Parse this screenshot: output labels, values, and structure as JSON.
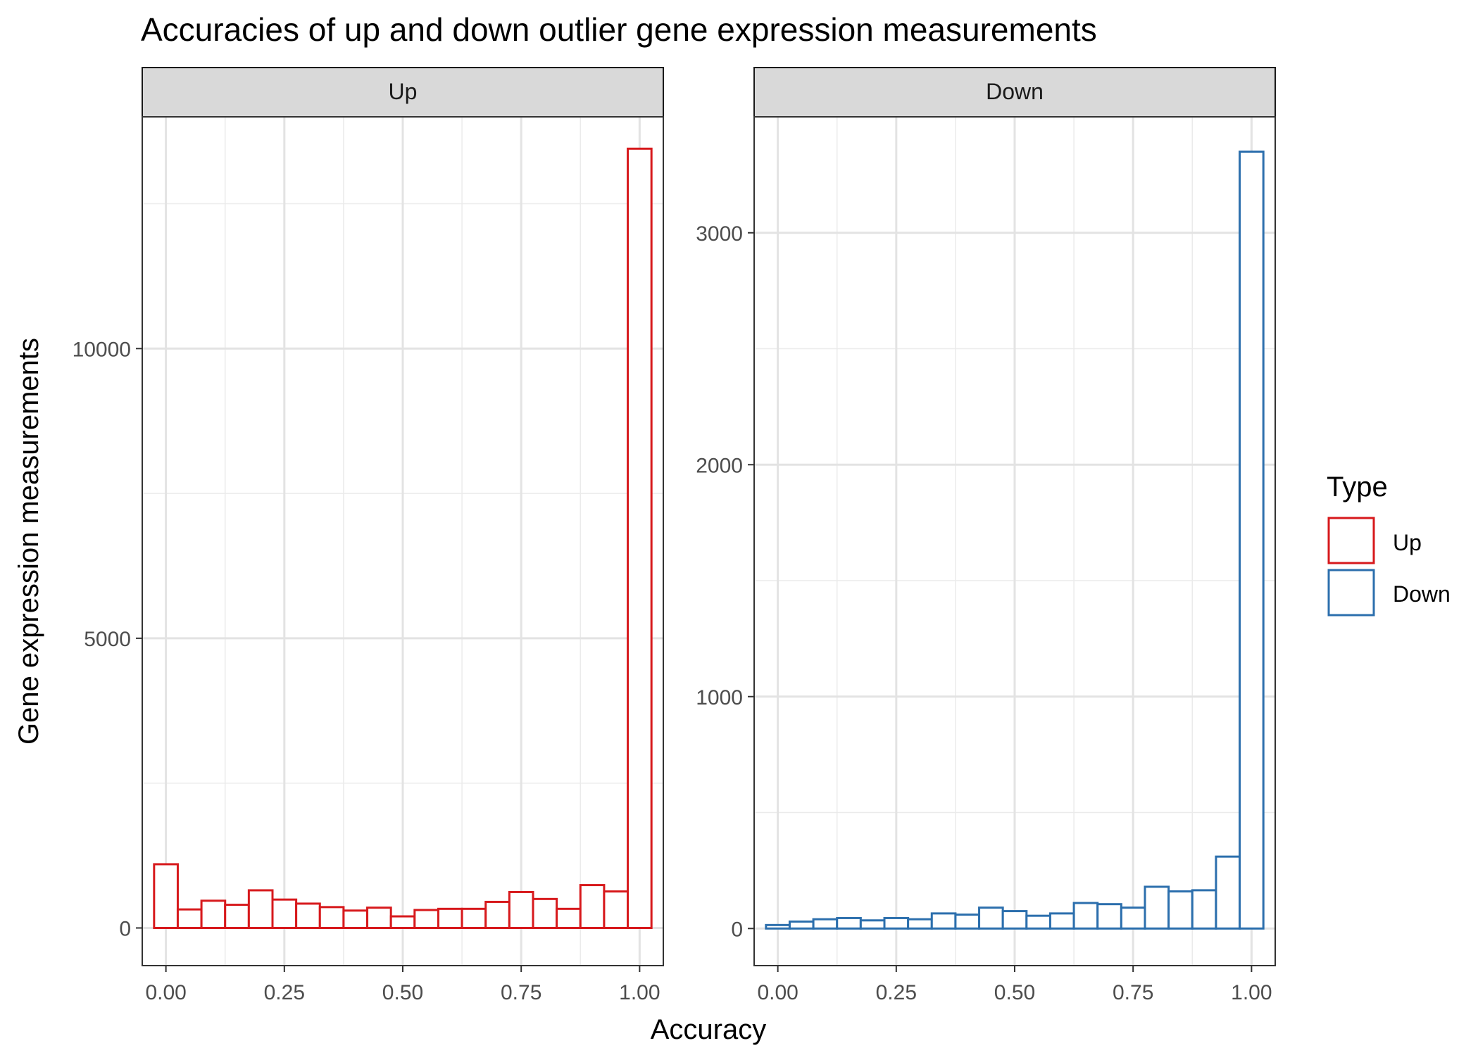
{
  "chart_data": {
    "type": "bar",
    "title": "Accuracies of up and down outlier gene expression measurements",
    "xlabel": "Accuracy",
    "ylabel": "Gene expression measurements",
    "x_ticks": [
      "0.00",
      "0.25",
      "0.50",
      "0.75",
      "1.00"
    ],
    "bin_width": 0.05,
    "bin_centers": [
      0.0,
      0.05,
      0.1,
      0.15,
      0.2,
      0.25,
      0.3,
      0.35,
      0.4,
      0.45,
      0.5,
      0.55,
      0.6,
      0.65,
      0.7,
      0.75,
      0.8,
      0.85,
      0.9,
      0.95,
      1.0
    ],
    "xlim": [
      -0.05,
      1.05
    ],
    "grid": true,
    "legend": {
      "title": "Type",
      "position": "right",
      "items": [
        {
          "label": "Up",
          "color": "#d7191c"
        },
        {
          "label": "Down",
          "color": "#2c6fad"
        }
      ]
    },
    "panels": [
      {
        "strip_label": "Up",
        "color": "#d7191c",
        "ylim": [
          -650,
          14000
        ],
        "y_ticks": [
          0,
          5000,
          10000
        ],
        "y_tick_labels": [
          "0",
          "5000",
          "10000"
        ],
        "values": [
          1100,
          320,
          470,
          400,
          650,
          490,
          420,
          360,
          300,
          350,
          200,
          310,
          330,
          330,
          450,
          620,
          500,
          330,
          740,
          630,
          13450
        ]
      },
      {
        "strip_label": "Down",
        "color": "#2c6fad",
        "ylim": [
          -160,
          3500
        ],
        "y_ticks": [
          0,
          1000,
          2000,
          3000
        ],
        "y_tick_labels": [
          "0",
          "1000",
          "2000",
          "3000"
        ],
        "values": [
          15,
          30,
          40,
          45,
          35,
          45,
          40,
          65,
          60,
          90,
          75,
          55,
          65,
          110,
          105,
          90,
          180,
          160,
          165,
          310,
          3350
        ]
      }
    ]
  }
}
